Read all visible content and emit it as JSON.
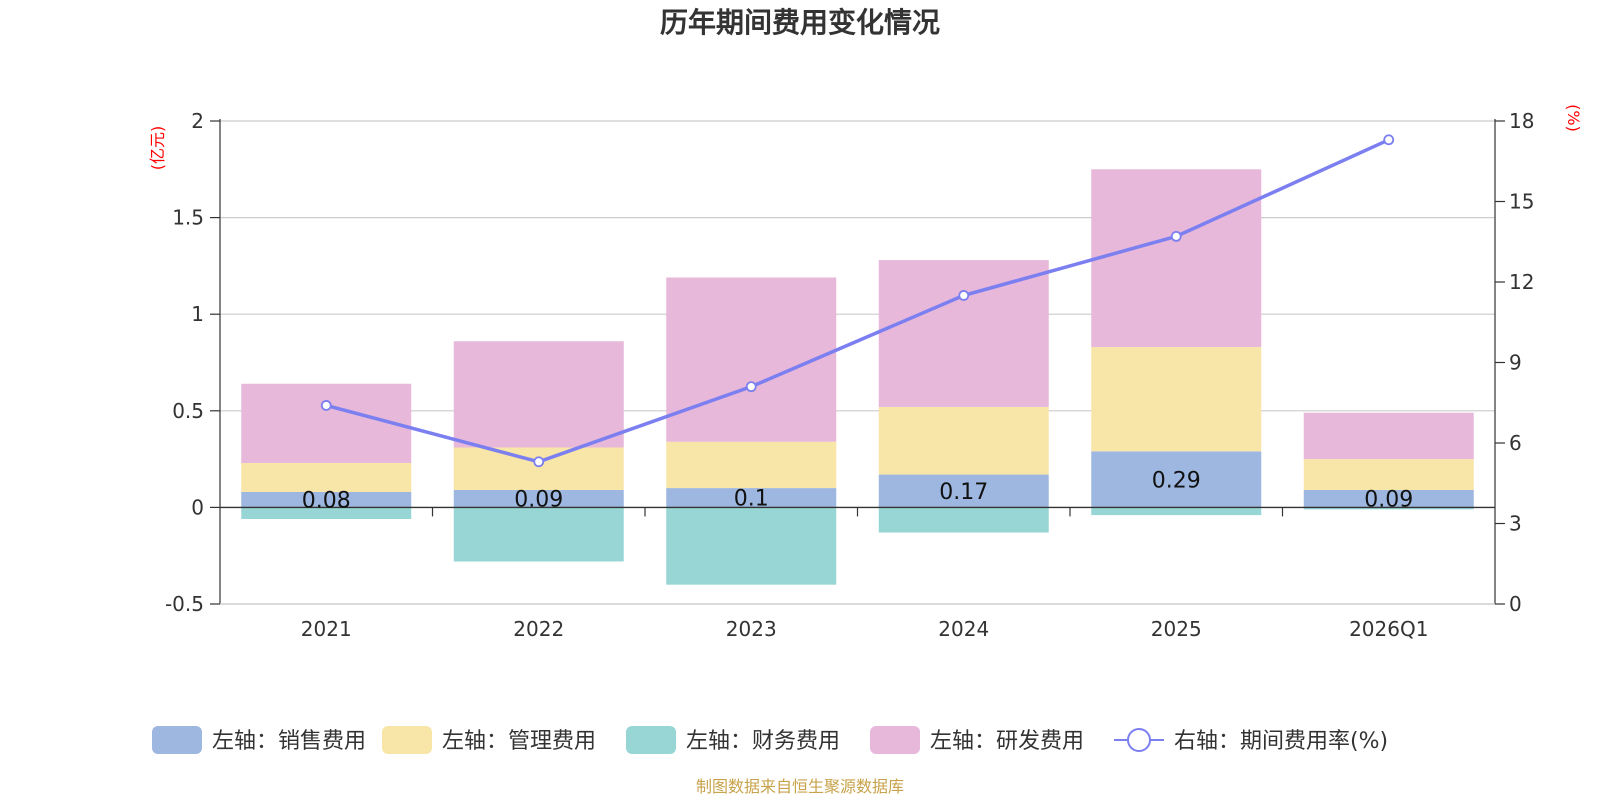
{
  "chart_data": {
    "type": "bar",
    "title": "历年期间费用变化情况",
    "categories": [
      "2021",
      "2022",
      "2023",
      "2024",
      "2025",
      "2026Q1"
    ],
    "y_left": {
      "unit": "(亿元)",
      "lim": [
        -0.5,
        2
      ],
      "ticks": [
        "-0.5",
        "0",
        "0.5",
        "1",
        "1.5",
        "2"
      ]
    },
    "y_right": {
      "unit": "(%)",
      "lim": [
        0,
        18
      ],
      "ticks": [
        "0",
        "3",
        "6",
        "9",
        "12",
        "15",
        "18"
      ]
    },
    "grid": true,
    "legend_position": "bottom",
    "series": [
      {
        "name": "左轴：销售费用",
        "color": "#9db7e0",
        "values": [
          0.08,
          0.09,
          0.1,
          0.17,
          0.29,
          0.09
        ],
        "labels": [
          "0.08",
          "0.09",
          "0.1",
          "0.17",
          "0.29",
          "0.09"
        ]
      },
      {
        "name": "左轴：管理费用",
        "color": "#f8e6a8",
        "values": [
          0.15,
          0.22,
          0.24,
          0.35,
          0.54,
          0.16
        ]
      },
      {
        "name": "左轴：财务费用",
        "color": "#98d5d5",
        "values": [
          -0.06,
          -0.28,
          -0.4,
          -0.13,
          -0.04,
          -0.01
        ]
      },
      {
        "name": "左轴：研发费用",
        "color": "#e7b8da",
        "values": [
          0.41,
          0.55,
          0.85,
          0.76,
          0.92,
          0.24
        ]
      },
      {
        "name": "右轴：期间费用率(%)",
        "color": "#7b7ff0",
        "type": "line",
        "axis": "right",
        "values": [
          7.4,
          5.3,
          8.1,
          11.5,
          13.7,
          17.3
        ]
      }
    ],
    "source": "制图数据来自恒生聚源数据库"
  }
}
